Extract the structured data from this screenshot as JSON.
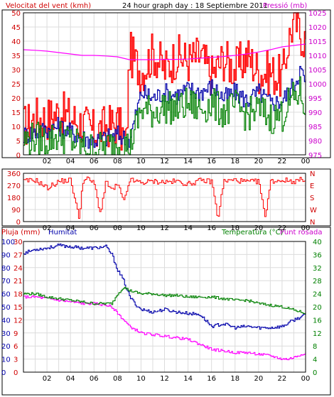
{
  "chart_data": [
    {
      "type": "line",
      "title": "24 hour graph day : 18 Septiembre 2011",
      "left_label": "Velocitat del vent (kmh)",
      "right_label": "Pressió (mb)",
      "x_ticks": [
        "02",
        "04",
        "06",
        "08",
        "10",
        "12",
        "14",
        "16",
        "18",
        "20",
        "22",
        "00"
      ],
      "y_left_ticks": [
        "0",
        "5",
        "10",
        "15",
        "20",
        "25",
        "30",
        "35",
        "40",
        "45",
        "50"
      ],
      "y_left_range": [
        0,
        50
      ],
      "y_right_ticks": [
        "975",
        "980",
        "985",
        "990",
        "995",
        "1000",
        "1005",
        "1010",
        "1015",
        "1020",
        "1025"
      ],
      "y_right_range": [
        975,
        1025
      ],
      "grid": true,
      "series": [
        {
          "color": "#ff0000",
          "axis": "left",
          "x": [
            0,
            1,
            2,
            3,
            4,
            5,
            6,
            7,
            8,
            8.7,
            9,
            10,
            11,
            12,
            13,
            14,
            15,
            16,
            17,
            18,
            19,
            20,
            21,
            22,
            22.5,
            23,
            23.5,
            24
          ],
          "y": [
            10,
            13,
            13,
            15,
            13,
            11,
            8,
            10,
            11,
            4,
            36,
            29,
            36,
            30,
            35,
            33,
            35,
            28,
            34,
            30,
            35,
            29,
            29,
            27,
            40,
            48,
            43,
            40
          ]
        },
        {
          "color": "#0000aa",
          "axis": "left",
          "x": [
            0,
            1,
            2,
            3,
            4,
            5,
            6,
            7,
            8,
            9,
            10,
            11,
            12,
            13,
            14,
            15,
            16,
            17,
            18,
            19,
            20,
            21,
            22,
            22.5,
            23,
            23.5,
            24
          ],
          "y": [
            7,
            8,
            9,
            10,
            8,
            6,
            5,
            6,
            7,
            5,
            22,
            20,
            22,
            21,
            23,
            22,
            24,
            20,
            22,
            19,
            22,
            18,
            19,
            22,
            25,
            30,
            25
          ]
        },
        {
          "color": "#008000",
          "axis": "left",
          "x": [
            0,
            1,
            2,
            3,
            4,
            5,
            6,
            7,
            8,
            9,
            10,
            11,
            12,
            13,
            14,
            15,
            16,
            17,
            18,
            19,
            20,
            21,
            22,
            22.5,
            23,
            23.5,
            24
          ],
          "y": [
            5,
            6,
            5,
            7,
            5,
            3,
            2,
            3,
            4,
            3,
            16,
            15,
            17,
            16,
            18,
            16,
            18,
            15,
            17,
            14,
            16,
            13,
            14,
            18,
            20,
            22,
            16
          ]
        },
        {
          "color": "#ff00ff",
          "axis": "right",
          "x": [
            0,
            1,
            2,
            3,
            4,
            5,
            6,
            7,
            8,
            9,
            10,
            11,
            12,
            13,
            14,
            15,
            16,
            17,
            18,
            19,
            20,
            21,
            22,
            23,
            24
          ],
          "y": [
            1012,
            1011.8,
            1011.5,
            1011,
            1010.5,
            1010,
            1010,
            1009.8,
            1009.5,
            1008.5,
            1008.5,
            1008.5,
            1008.6,
            1008.6,
            1008.7,
            1009,
            1009.3,
            1009.6,
            1010,
            1010.5,
            1011.2,
            1012,
            1013,
            1013.5,
            1014
          ]
        }
      ]
    },
    {
      "type": "scatter",
      "x_ticks": [
        "02",
        "04",
        "06",
        "08",
        "10",
        "12",
        "14",
        "16",
        "18",
        "20",
        "22",
        "00"
      ],
      "y_left_ticks": [
        "0",
        "90",
        "180",
        "270",
        "360"
      ],
      "y_left_range": [
        0,
        360
      ],
      "y_right_ticks": [
        "N",
        "W",
        "S",
        "E",
        "N"
      ],
      "grid": true,
      "series": [
        {
          "color": "#ff0000",
          "x": [
            0,
            1,
            2,
            3,
            4,
            4.7,
            5,
            5.5,
            6,
            6.5,
            7,
            7.5,
            8,
            8.5,
            9,
            10,
            11,
            12,
            13,
            14,
            15,
            16,
            16.5,
            17,
            18,
            19,
            20,
            20.5,
            21,
            22,
            23,
            24
          ],
          "y": [
            300,
            310,
            250,
            300,
            310,
            20,
            300,
            320,
            280,
            60,
            300,
            230,
            280,
            140,
            310,
            290,
            300,
            295,
            300,
            280,
            305,
            300,
            20,
            300,
            310,
            295,
            300,
            30,
            300,
            310,
            300,
            320
          ]
        }
      ]
    },
    {
      "type": "line",
      "left_labels": [
        "Pluja (mm)",
        "Humitat"
      ],
      "right_labels": [
        "Temperatura (°C)",
        "Punt rosada"
      ],
      "x_ticks": [
        "02",
        "04",
        "06",
        "08",
        "10",
        "12",
        "14",
        "16",
        "18",
        "20",
        "22",
        "00"
      ],
      "y_left_ticks_rain": [
        "0",
        "3",
        "6",
        "9",
        "12",
        "15",
        "18",
        "21",
        "24",
        "27",
        "30"
      ],
      "y_left_ticks_humidity": [
        "0",
        "10",
        "20",
        "30",
        "40",
        "50",
        "60",
        "70",
        "80",
        "90",
        "100"
      ],
      "y_right_ticks": [
        "0",
        "4",
        "8",
        "12",
        "16",
        "20",
        "24",
        "28",
        "32",
        "36",
        "40"
      ],
      "y_right_range": [
        0,
        40
      ],
      "grid": true,
      "series": [
        {
          "color": "#0000aa",
          "scale": "humidity",
          "x": [
            0,
            1,
            2,
            3,
            4,
            5,
            6,
            7,
            7.5,
            8,
            8.5,
            9,
            9.5,
            10,
            11,
            12,
            13,
            14,
            15,
            16,
            17,
            18,
            19,
            20,
            21,
            22,
            23,
            24
          ],
          "y": [
            91,
            94,
            95,
            97,
            96,
            95,
            95,
            96,
            90,
            78,
            70,
            58,
            52,
            48,
            46,
            48,
            46,
            45,
            44,
            35,
            37,
            34,
            35,
            34,
            34,
            35,
            40,
            44
          ]
        },
        {
          "color": "#ff00ff",
          "scale": "right",
          "x": [
            0,
            1,
            2,
            3,
            4,
            5,
            6,
            7,
            7.5,
            8,
            8.5,
            9,
            9.5,
            10,
            11,
            12,
            13,
            14,
            15,
            16,
            17,
            18,
            19,
            20,
            21,
            22,
            22.5,
            23,
            24
          ],
          "y": [
            23,
            23,
            22.5,
            22,
            21.5,
            21,
            21,
            20.5,
            20,
            18,
            16,
            14,
            13,
            12,
            11.5,
            11,
            10.5,
            10,
            8.5,
            7,
            6.5,
            6,
            6,
            5.5,
            5,
            4,
            4,
            4.5,
            6
          ]
        },
        {
          "color": "#008000",
          "scale": "right",
          "x": [
            0,
            1,
            2,
            3,
            4,
            5,
            6,
            7,
            7.5,
            8,
            8.5,
            9,
            9.5,
            10,
            11,
            12,
            13,
            14,
            15,
            16,
            17,
            18,
            19,
            20,
            21,
            22,
            23,
            24
          ],
          "y": [
            24,
            24,
            23,
            22.5,
            22,
            21.5,
            21,
            21,
            21,
            24,
            26,
            25,
            24.5,
            24,
            24,
            23.5,
            23.5,
            23,
            23,
            23,
            22.5,
            22,
            22,
            21,
            20.5,
            20,
            19,
            18
          ]
        },
        {
          "color": "#ff0000",
          "scale": "rain",
          "x": [
            0,
            24
          ],
          "y": [
            0,
            0
          ]
        }
      ]
    }
  ]
}
